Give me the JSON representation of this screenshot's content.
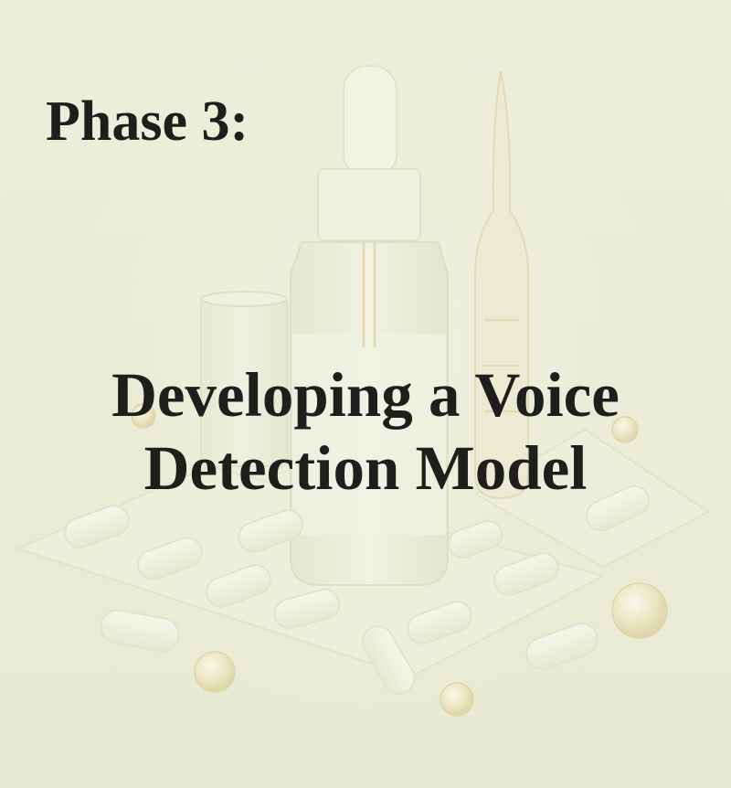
{
  "slide": {
    "phase_label": "Phase 3:",
    "title_line1": "Developing a Voice",
    "title_line2": "Detection Model"
  },
  "colors": {
    "background": "#ecedd8",
    "text": "#1e1e1c",
    "accent_amber": "#e8d9a8"
  },
  "icons": [
    "dropper-bottle-icon",
    "ampoule-icon",
    "beaker-icon",
    "blister-pack-icon",
    "capsule-icon",
    "pill-bead-icon"
  ]
}
